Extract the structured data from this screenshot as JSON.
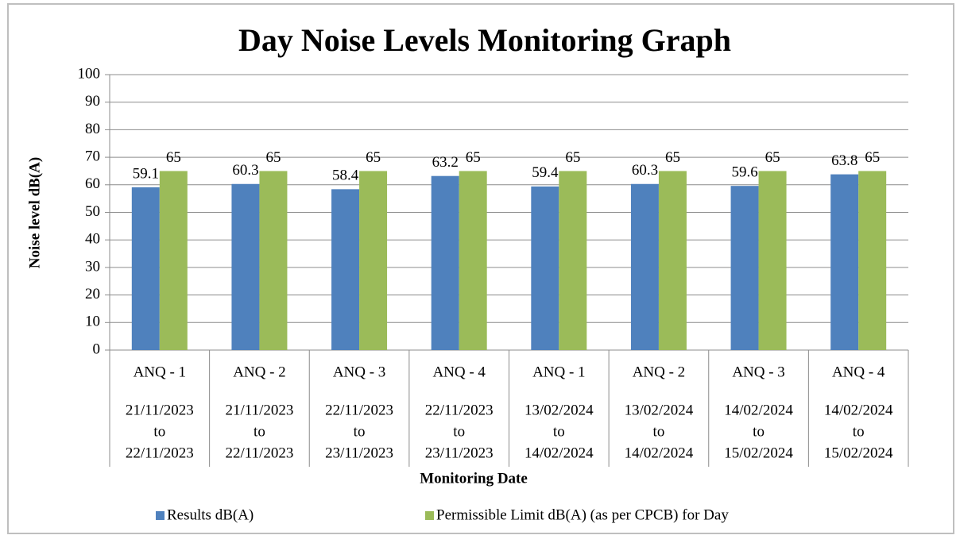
{
  "chart_data": {
    "type": "bar",
    "title": "Day Noise Levels Monitoring Graph",
    "y_label": "Noise level dB(A)",
    "x_label": "Monitoring Date",
    "categories": [
      "ANQ - 1",
      "ANQ - 2",
      "ANQ - 3",
      "ANQ - 4",
      "ANQ - 1",
      "ANQ - 2",
      "ANQ - 3",
      "ANQ - 4"
    ],
    "periods": [
      [
        "21/11/2023",
        "to",
        "22/11/2023"
      ],
      [
        "21/11/2023",
        "to",
        "22/11/2023"
      ],
      [
        "22/11/2023",
        "to",
        "23/11/2023"
      ],
      [
        "22/11/2023",
        "to",
        "23/11/2023"
      ],
      [
        "13/02/2024",
        "to",
        "14/02/2024"
      ],
      [
        "13/02/2024",
        "to",
        "14/02/2024"
      ],
      [
        "14/02/2024",
        "to",
        "15/02/2024"
      ],
      [
        "14/02/2024",
        "to",
        "15/02/2024"
      ]
    ],
    "series": [
      {
        "name": "Results dB(A)",
        "color": "#4f81bd",
        "values": [
          59.1,
          60.3,
          58.4,
          63.2,
          59.4,
          60.3,
          59.6,
          63.8
        ]
      },
      {
        "name": "Permissible Limit dB(A) (as per CPCB) for Day",
        "color": "#9bbb59",
        "values": [
          65,
          65,
          65,
          65,
          65,
          65,
          65,
          65
        ]
      }
    ],
    "ylim": [
      0,
      100
    ],
    "yticks": [
      0,
      10,
      20,
      30,
      40,
      50,
      60,
      70,
      80,
      90,
      100
    ],
    "grid": true,
    "legend": "bottom"
  }
}
